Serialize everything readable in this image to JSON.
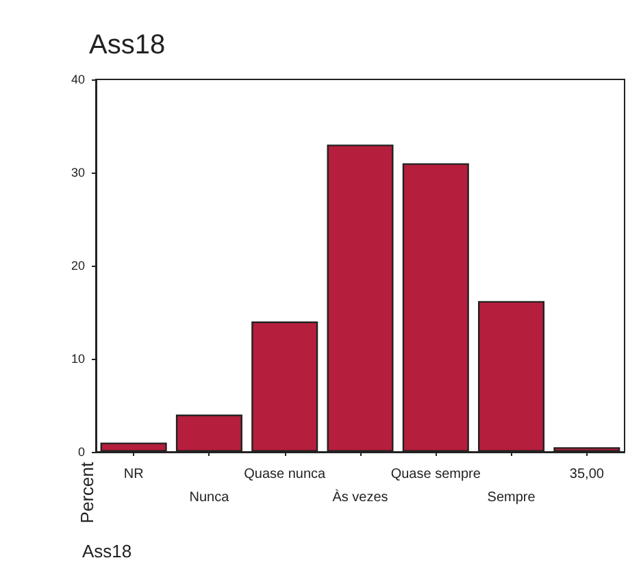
{
  "chart_data": {
    "type": "bar",
    "title": "Ass18",
    "xlabel": "Ass18",
    "ylabel": "Percent",
    "categories": [
      "NR",
      "Nunca",
      "Quase nunca",
      "Às vezes",
      "Quase sempre",
      "Sempre",
      "35,00"
    ],
    "values": [
      1,
      4,
      14,
      33,
      31,
      16.2,
      0.5
    ],
    "color": "#b51e3c",
    "ylim": [
      0,
      40
    ],
    "yticks": [
      0,
      10,
      20,
      30,
      40
    ],
    "grid": false
  }
}
